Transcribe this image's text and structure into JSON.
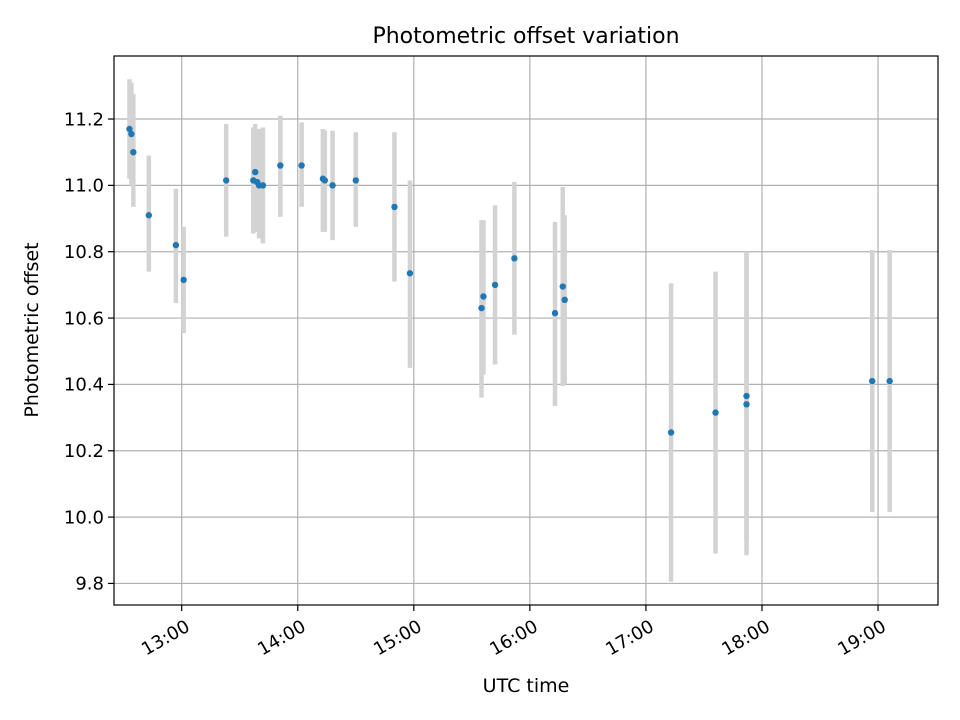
{
  "chart_data": {
    "type": "scatter",
    "title": "Photometric offset variation",
    "xlabel": "UTC time",
    "ylabel": "Photometric offset",
    "xlim": [
      "12:25",
      "19:31"
    ],
    "ylim": [
      9.735,
      11.39
    ],
    "x_ticks": [
      "13:00",
      "14:00",
      "15:00",
      "16:00",
      "17:00",
      "18:00",
      "19:00"
    ],
    "y_ticks": [
      "9.8",
      "10.0",
      "10.2",
      "10.4",
      "10.6",
      "10.8",
      "11.0",
      "11.2"
    ],
    "grid": true,
    "point_color": "#1f77b4",
    "errorbar_color": "#d3d3d3",
    "series": [
      {
        "points": [
          {
            "x": "12:33",
            "y": 11.17,
            "ylow": 11.02,
            "yhigh": 11.32
          },
          {
            "x": "12:34",
            "y": 11.155,
            "ylow": 11.0,
            "yhigh": 11.31
          },
          {
            "x": "12:35",
            "y": 11.1,
            "ylow": 10.935,
            "yhigh": 11.275
          },
          {
            "x": "12:43",
            "y": 10.91,
            "ylow": 10.74,
            "yhigh": 11.09
          },
          {
            "x": "12:57",
            "y": 10.82,
            "ylow": 10.645,
            "yhigh": 10.99
          },
          {
            "x": "13:01",
            "y": 10.715,
            "ylow": 10.555,
            "yhigh": 10.875
          },
          {
            "x": "13:23",
            "y": 11.015,
            "ylow": 10.845,
            "yhigh": 11.185
          },
          {
            "x": "13:37",
            "y": 11.015,
            "ylow": 10.855,
            "yhigh": 11.175
          },
          {
            "x": "13:38",
            "y": 11.04,
            "ylow": 10.87,
            "yhigh": 11.185
          },
          {
            "x": "13:39",
            "y": 11.01,
            "ylow": 10.86,
            "yhigh": 11.16
          },
          {
            "x": "13:40",
            "y": 11.0,
            "ylow": 10.84,
            "yhigh": 11.17
          },
          {
            "x": "13:42",
            "y": 11.0,
            "ylow": 10.825,
            "yhigh": 11.175
          },
          {
            "x": "13:51",
            "y": 11.06,
            "ylow": 10.905,
            "yhigh": 11.21
          },
          {
            "x": "14:02",
            "y": 11.06,
            "ylow": 10.935,
            "yhigh": 11.19
          },
          {
            "x": "14:13",
            "y": 11.02,
            "ylow": 10.86,
            "yhigh": 11.17
          },
          {
            "x": "14:14",
            "y": 11.015,
            "ylow": 10.86,
            "yhigh": 11.165
          },
          {
            "x": "14:18",
            "y": 11.0,
            "ylow": 10.835,
            "yhigh": 11.165
          },
          {
            "x": "14:30",
            "y": 11.015,
            "ylow": 10.875,
            "yhigh": 11.16
          },
          {
            "x": "14:50",
            "y": 10.935,
            "ylow": 10.71,
            "yhigh": 11.16
          },
          {
            "x": "14:58",
            "y": 10.735,
            "ylow": 10.45,
            "yhigh": 11.015
          },
          {
            "x": "15:35",
            "y": 10.63,
            "ylow": 10.36,
            "yhigh": 10.895
          },
          {
            "x": "15:36",
            "y": 10.665,
            "ylow": 10.43,
            "yhigh": 10.895
          },
          {
            "x": "15:42",
            "y": 10.7,
            "ylow": 10.46,
            "yhigh": 10.94
          },
          {
            "x": "15:52",
            "y": 10.78,
            "ylow": 10.55,
            "yhigh": 11.01
          },
          {
            "x": "16:13",
            "y": 10.615,
            "ylow": 10.335,
            "yhigh": 10.89
          },
          {
            "x": "16:17",
            "y": 10.695,
            "ylow": 10.395,
            "yhigh": 10.995
          },
          {
            "x": "16:18",
            "y": 10.655,
            "ylow": 10.4,
            "yhigh": 10.91
          },
          {
            "x": "17:13",
            "y": 10.255,
            "ylow": 9.805,
            "yhigh": 10.705
          },
          {
            "x": "17:36",
            "y": 10.315,
            "ylow": 9.89,
            "yhigh": 10.74
          },
          {
            "x": "17:52",
            "y": 10.365,
            "ylow": 9.93,
            "yhigh": 10.8
          },
          {
            "x": "17:52",
            "y": 10.34,
            "ylow": 9.885,
            "yhigh": 10.8
          },
          {
            "x": "18:57",
            "y": 10.41,
            "ylow": 10.015,
            "yhigh": 10.805
          },
          {
            "x": "19:06",
            "y": 10.41,
            "ylow": 10.015,
            "yhigh": 10.805
          }
        ]
      }
    ]
  }
}
